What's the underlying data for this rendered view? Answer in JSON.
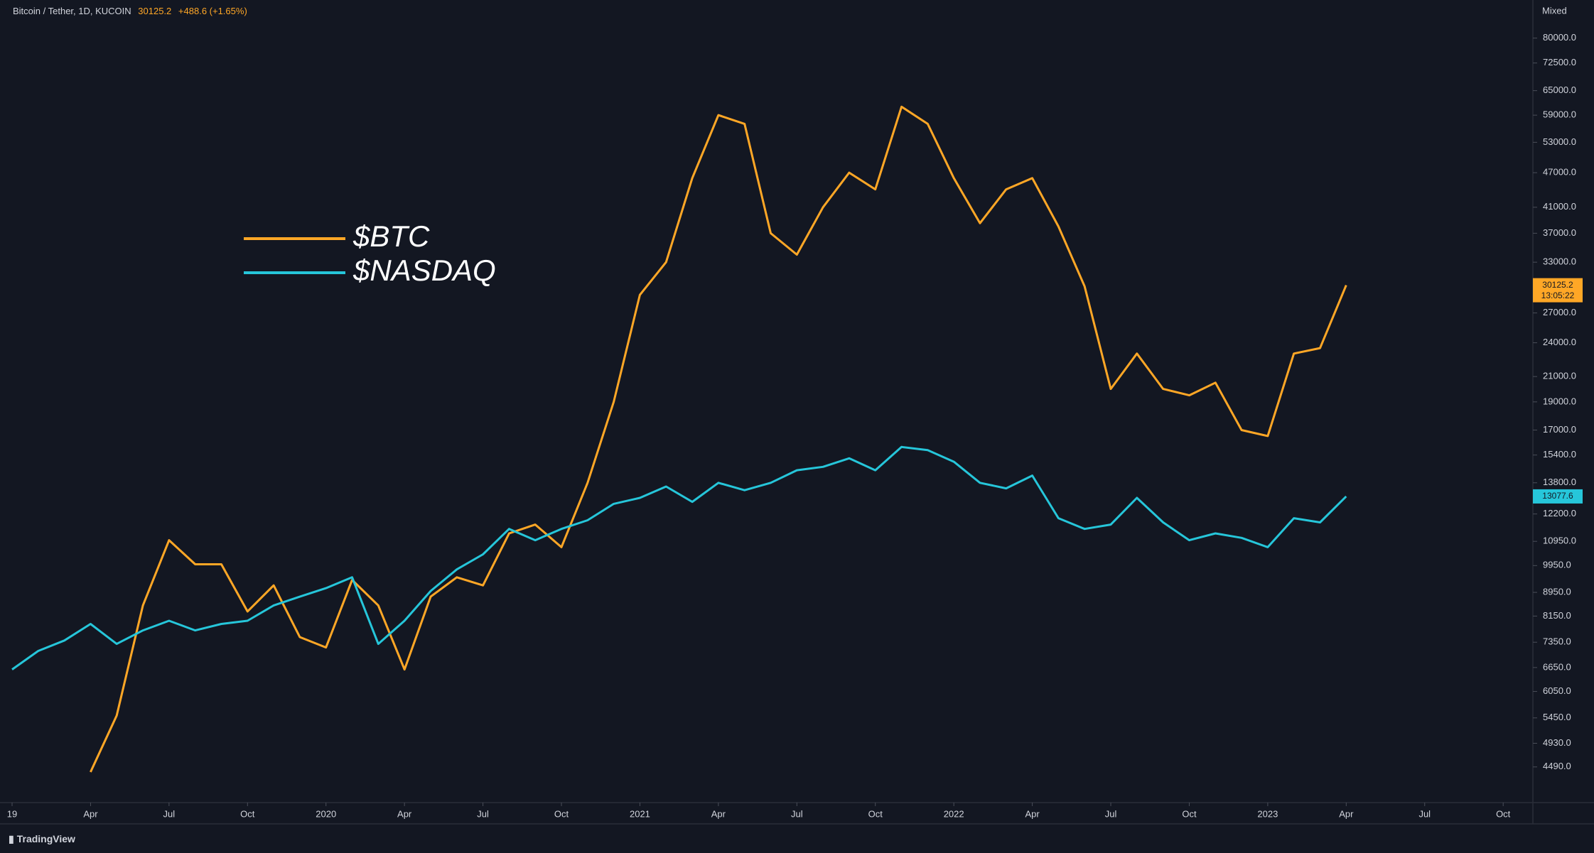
{
  "chart_data": {
    "type": "line",
    "title": "Bitcoin / Tether, 1D, KUCOIN",
    "change": "+488.6 (+1.65%)",
    "countdown": "13:05:22",
    "scale_mode": "Mixed",
    "brand": "TradingView",
    "log_scale": true,
    "grid": false,
    "x": [
      "2019-01",
      "2019-02",
      "2019-03",
      "2019-04",
      "2019-05",
      "2019-06",
      "2019-07",
      "2019-08",
      "2019-09",
      "2019-10",
      "2019-11",
      "2019-12",
      "2020-01",
      "2020-02",
      "2020-03",
      "2020-04",
      "2020-05",
      "2020-06",
      "2020-07",
      "2020-08",
      "2020-09",
      "2020-10",
      "2020-11",
      "2020-12",
      "2021-01",
      "2021-02",
      "2021-03",
      "2021-04",
      "2021-05",
      "2021-06",
      "2021-07",
      "2021-08",
      "2021-09",
      "2021-10",
      "2021-11",
      "2021-12",
      "2022-01",
      "2022-02",
      "2022-03",
      "2022-04",
      "2022-05",
      "2022-06",
      "2022-07",
      "2022-08",
      "2022-09",
      "2022-10",
      "2022-11",
      "2022-12",
      "2023-01",
      "2023-02",
      "2023-03",
      "2023-04"
    ],
    "series": [
      {
        "name": "$BTC",
        "color": "#ffa726",
        "values": [
          null,
          null,
          null,
          4400,
          5500,
          8500,
          11000,
          10000,
          10000,
          8300,
          9200,
          7500,
          7200,
          9400,
          8500,
          6600,
          8800,
          9500,
          9200,
          11300,
          11700,
          10700,
          13800,
          19000,
          29000,
          33000,
          46000,
          59000,
          57000,
          37000,
          34000,
          41000,
          47000,
          44000,
          61000,
          57000,
          46000,
          38500,
          44000,
          46000,
          38000,
          30000,
          20000,
          23000,
          20000,
          19500,
          20500,
          17000,
          16600,
          23000,
          23500,
          30125.2
        ]
      },
      {
        "name": "$NASDAQ",
        "color": "#26c6da",
        "values": [
          6600,
          7100,
          7400,
          7900,
          7300,
          7700,
          8000,
          7700,
          7900,
          8000,
          8500,
          8800,
          9100,
          9500,
          7300,
          8000,
          9000,
          9800,
          10400,
          11500,
          11000,
          11500,
          11900,
          12700,
          13000,
          13600,
          12800,
          13800,
          13400,
          13800,
          14500,
          14700,
          15200,
          14500,
          15900,
          15700,
          15000,
          13800,
          13500,
          14200,
          12000,
          11500,
          11700,
          13000,
          11800,
          11000,
          11300,
          11100,
          10700,
          12000,
          11800,
          13077.6
        ]
      }
    ],
    "xlim": [
      "2019-01",
      "2023-11"
    ],
    "xticks": [
      {
        "value": "2019-01",
        "label": "19"
      },
      {
        "value": "2019-04",
        "label": "Apr"
      },
      {
        "value": "2019-07",
        "label": "Jul"
      },
      {
        "value": "2019-10",
        "label": "Oct"
      },
      {
        "value": "2020-01",
        "label": "2020"
      },
      {
        "value": "2020-04",
        "label": "Apr"
      },
      {
        "value": "2020-07",
        "label": "Jul"
      },
      {
        "value": "2020-10",
        "label": "Oct"
      },
      {
        "value": "2021-01",
        "label": "2021"
      },
      {
        "value": "2021-04",
        "label": "Apr"
      },
      {
        "value": "2021-07",
        "label": "Jul"
      },
      {
        "value": "2021-10",
        "label": "Oct"
      },
      {
        "value": "2022-01",
        "label": "2022"
      },
      {
        "value": "2022-04",
        "label": "Apr"
      },
      {
        "value": "2022-07",
        "label": "Jul"
      },
      {
        "value": "2022-10",
        "label": "Oct"
      },
      {
        "value": "2023-01",
        "label": "2023"
      },
      {
        "value": "2023-04",
        "label": "Apr"
      },
      {
        "value": "2023-07",
        "label": "Jul"
      },
      {
        "value": "2023-10",
        "label": "Oct"
      }
    ],
    "ylim": [
      3900,
      93000
    ],
    "yticks": [
      {
        "value": 80000,
        "label": "80000.0"
      },
      {
        "value": 72500,
        "label": "72500.0"
      },
      {
        "value": 65000,
        "label": "65000.0"
      },
      {
        "value": 59000,
        "label": "59000.0"
      },
      {
        "value": 53000,
        "label": "53000.0"
      },
      {
        "value": 47000,
        "label": "47000.0"
      },
      {
        "value": 41000,
        "label": "41000.0"
      },
      {
        "value": 37000,
        "label": "37000.0"
      },
      {
        "value": 33000,
        "label": "33000.0"
      },
      {
        "value": 27000,
        "label": "27000.0"
      },
      {
        "value": 24000,
        "label": "24000.0"
      },
      {
        "value": 21000,
        "label": "21000.0"
      },
      {
        "value": 19000,
        "label": "19000.0"
      },
      {
        "value": 17000,
        "label": "17000.0"
      },
      {
        "value": 15400,
        "label": "15400.0"
      },
      {
        "value": 13800,
        "label": "13800.0"
      },
      {
        "value": 12200,
        "label": "12200.0"
      },
      {
        "value": 10950,
        "label": "10950.0"
      },
      {
        "value": 9950,
        "label": "9950.0"
      },
      {
        "value": 8950,
        "label": "8950.0"
      },
      {
        "value": 8150,
        "label": "8150.0"
      },
      {
        "value": 7350,
        "label": "7350.0"
      },
      {
        "value": 6650,
        "label": "6650.0"
      },
      {
        "value": 6050,
        "label": "6050.0"
      },
      {
        "value": 5450,
        "label": "5450.0"
      },
      {
        "value": 4930,
        "label": "4930.0"
      },
      {
        "value": 4490,
        "label": "4490.0"
      }
    ]
  }
}
